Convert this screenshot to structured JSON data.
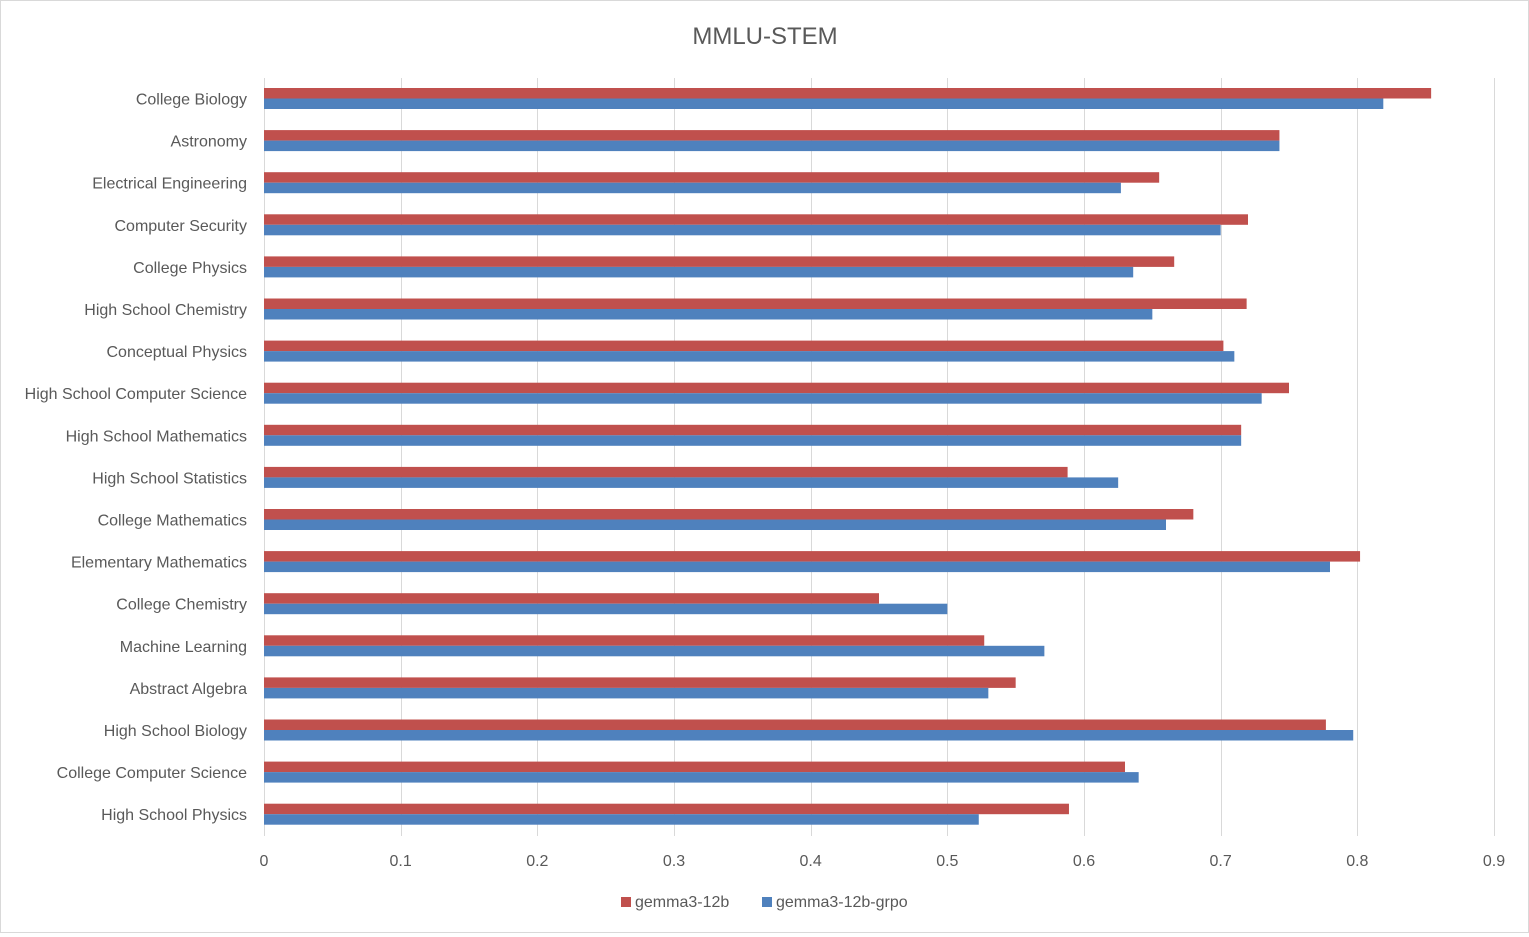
{
  "chart_data": {
    "type": "bar",
    "orientation": "horizontal",
    "title": "MMLU-STEM",
    "xlabel": "",
    "ylabel": "",
    "xlim": [
      0,
      0.9
    ],
    "xticks": [
      "0",
      "0.1",
      "0.2",
      "0.3",
      "0.4",
      "0.5",
      "0.6",
      "0.7",
      "0.8",
      "0.9"
    ],
    "grid": true,
    "legend_position": "bottom",
    "categories": [
      "College Biology",
      "Astronomy",
      "Electrical Engineering",
      "Computer Security",
      "College Physics",
      "High School Chemistry",
      "Conceptual Physics",
      "High School Computer Science",
      "High School Mathematics",
      "High School Statistics",
      "College Mathematics",
      "Elementary Mathematics",
      "College Chemistry",
      "Machine Learning",
      "Abstract Algebra",
      "High School Biology",
      "College Computer Science",
      "High School Physics"
    ],
    "series": [
      {
        "name": "gemma3-12b",
        "color": "#c0504d",
        "values": [
          0.854,
          0.743,
          0.655,
          0.72,
          0.666,
          0.719,
          0.702,
          0.75,
          0.715,
          0.588,
          0.68,
          0.802,
          0.45,
          0.527,
          0.55,
          0.777,
          0.63,
          0.589
        ]
      },
      {
        "name": "gemma3-12b-grpo",
        "color": "#4f81bd",
        "values": [
          0.819,
          0.743,
          0.627,
          0.7,
          0.636,
          0.65,
          0.71,
          0.73,
          0.715,
          0.625,
          0.66,
          0.78,
          0.5,
          0.571,
          0.53,
          0.797,
          0.64,
          0.523
        ]
      }
    ]
  }
}
